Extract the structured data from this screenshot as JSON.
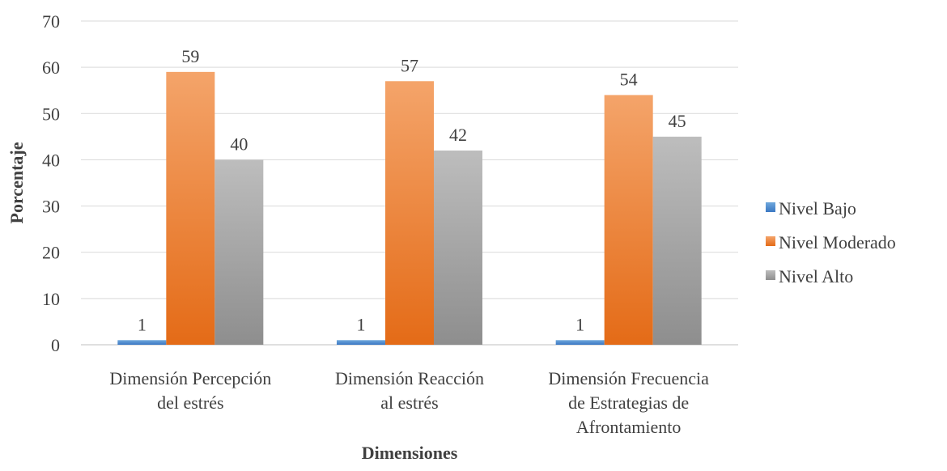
{
  "chart_data": {
    "type": "bar",
    "title": "",
    "xlabel": "Dimensiones",
    "ylabel": "Porcentaje",
    "ylim": [
      0,
      70
    ],
    "yticks": [
      0,
      10,
      20,
      30,
      40,
      50,
      60,
      70
    ],
    "grid": true,
    "legend_position": "right",
    "categories": [
      [
        "Dimensión Percepción",
        "del estrés"
      ],
      [
        "Dimensión Reacción",
        "al estrés"
      ],
      [
        "Dimensión Frecuencia",
        "de Estrategias de",
        "Afrontamiento"
      ]
    ],
    "series": [
      {
        "name": "Nivel Bajo",
        "values": [
          1,
          1,
          1
        ],
        "color_top": "#6FA8DC",
        "color_bottom": "#3B78C3"
      },
      {
        "name": "Nivel Moderado",
        "values": [
          59,
          57,
          54
        ],
        "color_top": "#F4A46A",
        "color_bottom": "#E46B17"
      },
      {
        "name": "Nivel Alto",
        "values": [
          40,
          42,
          45
        ],
        "color_top": "#BDBDBD",
        "color_bottom": "#8E8E8E"
      }
    ]
  }
}
